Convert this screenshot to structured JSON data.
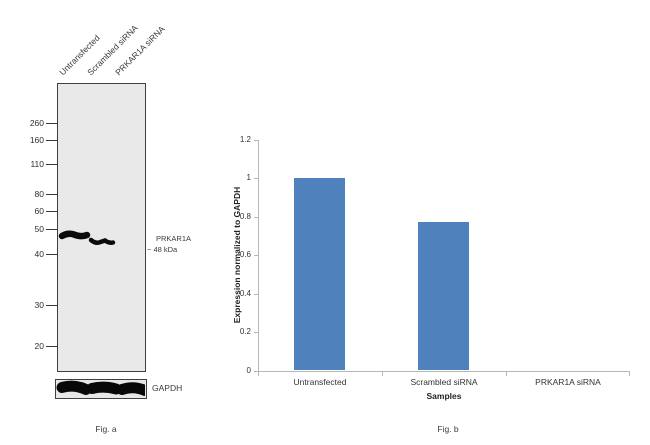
{
  "fig_a": {
    "caption": "Fig. a",
    "lane_labels": [
      "Untransfected",
      "Scrambled siRNA",
      "PRKAR1A siRNA"
    ],
    "mw_markers": [
      "260",
      "160",
      "110",
      "80",
      "60",
      "50",
      "40",
      "30",
      "20"
    ],
    "target_label": "PRKAR1A",
    "target_size": "~ 48 kDa",
    "loading_control": "GAPDH"
  },
  "fig_b": {
    "caption": "Fig. b"
  },
  "chart_data": {
    "type": "bar",
    "categories": [
      "Untransfected",
      "Scrambled siRNA",
      "PRKAR1A siRNA"
    ],
    "values": [
      1.0,
      0.77,
      0
    ],
    "title": "",
    "xlabel": "Samples",
    "ylabel": "Expression normalized to GAPDH",
    "ylim": [
      0,
      1.2
    ],
    "yticks": [
      "0",
      "0.2",
      "0.4",
      "0.6",
      "0.8",
      "1",
      "1.2"
    ],
    "bar_color": "#4F81BD",
    "axis_color": "#b3b8bd",
    "grid": false,
    "legend": "none"
  }
}
